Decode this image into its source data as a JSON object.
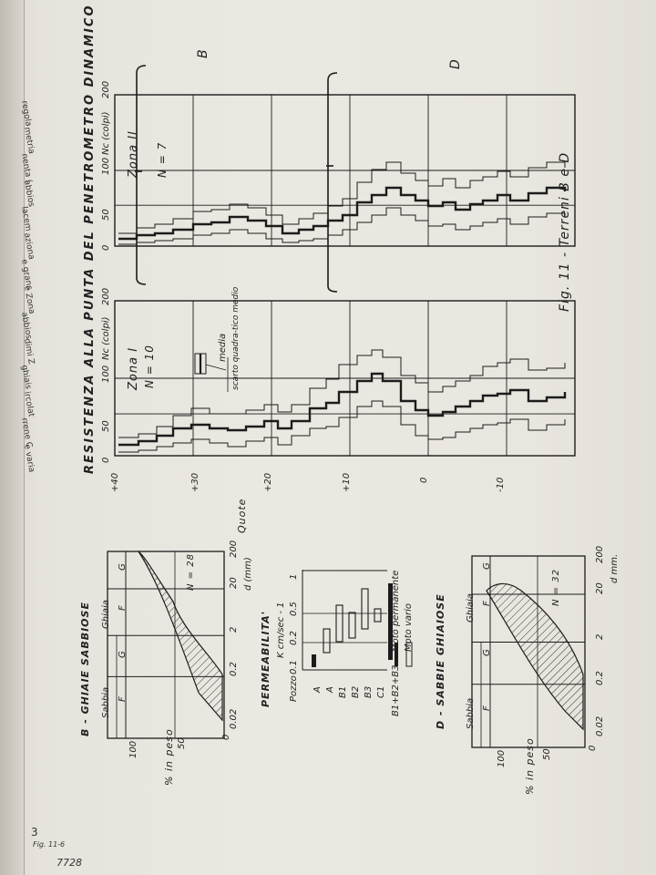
{
  "figure": {
    "title": "RESISTENZA ALLA PUNTA DEL PENETROMETRO DINAMICO",
    "caption": "Fig. 11 - Terreni B e D"
  },
  "penetrometer": {
    "axis_label": "Nc (colpi)",
    "quote_label": "Quote",
    "x_ticks": [
      "0",
      "50",
      "100",
      "200"
    ],
    "y_ticks": [
      "+40",
      "+30",
      "+20",
      "+10",
      "0",
      "-10"
    ],
    "zone1": {
      "label": "Zona I",
      "n": "N = 10"
    },
    "zone2": {
      "label": "Zona II",
      "n": "N = 7"
    },
    "legend_media": "media",
    "legend_scarto": "scarto quadra-tico medio",
    "bracket_b": "B",
    "bracket_d": "D"
  },
  "grading_b": {
    "title": "B - GHIAIE SABBIOSE",
    "sabbia": "Sabbia",
    "ghiaia": "Ghiaia",
    "cols": [
      "F",
      "G",
      "F",
      "G"
    ],
    "n": "N = 28",
    "y_label": "% in peso",
    "y_ticks": [
      "100",
      "50",
      "0"
    ],
    "x_ticks": [
      "0.02",
      "0.2",
      "2",
      "20",
      "200"
    ],
    "x_label": "d (mm)"
  },
  "grading_d": {
    "title": "D - SABBIE GHIAIOSE",
    "sabbia": "Sabbia",
    "ghiaia": "Ghiaia",
    "cols": [
      "F",
      "G",
      "F",
      "G"
    ],
    "n": "N = 32",
    "y_label": "% in peso",
    "y_ticks": [
      "100",
      "50",
      "0"
    ],
    "x_ticks": [
      "0.02",
      "0.2",
      "2",
      "20",
      "200"
    ],
    "x_label": "d mm."
  },
  "permeability": {
    "title": "PERMEABILITA'",
    "k_label": "K cm/sec - 1",
    "header": "Pozzo",
    "k_ticks": [
      "0.1",
      "0.2",
      "0.5",
      "1"
    ],
    "rows": [
      "A",
      "A",
      "B1",
      "B2",
      "B3",
      "C1",
      "B1+B2+B3"
    ],
    "legend_permanent": "Moto permanente",
    "legend_vario": "Moto vario"
  },
  "margin": {
    "page_number": "3",
    "note": "Fig. 11-6",
    "stamp": "7728",
    "left_text": [
      "regola",
      "metria",
      "nenta (",
      "abbios",
      "lacem",
      "aziona",
      "e grans",
      "e Zona",
      "abbios",
      "dimi Z",
      "ghiais",
      "ircolat",
      "rrene C",
      "e varia"
    ]
  }
}
